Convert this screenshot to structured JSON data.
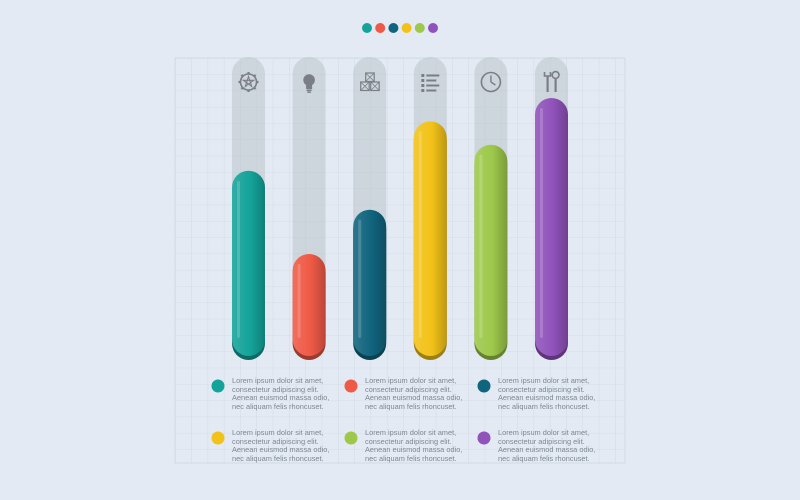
{
  "chart_data": {
    "type": "bar",
    "categories": [
      "gear",
      "lightbulb",
      "boxes",
      "list",
      "clock",
      "tools"
    ],
    "values": [
      72,
      40,
      57,
      91,
      82,
      100
    ],
    "ylim": [
      0,
      120
    ],
    "grid": true,
    "legend_placement": "top-center",
    "colors": [
      "#14a39a",
      "#ef5a46",
      "#11647e",
      "#f2c218",
      "#9dc84a",
      "#9052bb"
    ],
    "icons": [
      "gear-icon",
      "lightbulb-icon",
      "boxes-icon",
      "list-icon",
      "clock-icon",
      "tools-icon"
    ],
    "legend_entries": [
      {
        "color": "#14a39a",
        "text": "Lorem ipsum dolor sit amet,\nconsectetur adipiscing elit.\nAenean euismod massa odio,\nnec aliquam felis rhoncuset."
      },
      {
        "color": "#ef5a46",
        "text": "Lorem ipsum dolor sit amet,\nconsectetur adipiscing elit.\nAenean euismod massa odio,\nnec aliquam felis rhoncuset."
      },
      {
        "color": "#11647e",
        "text": "Lorem ipsum dolor sit amet,\nconsectetur adipiscing elit.\nAenean euismod massa odio,\nnec aliquam felis rhoncuset."
      },
      {
        "color": "#f2c218",
        "text": "Lorem ipsum dolor sit amet,\nconsectetur adipiscing elit.\nAenean euismod massa odio,\nnec aliquam felis rhoncuset."
      },
      {
        "color": "#9dc84a",
        "text": "Lorem ipsum dolor sit amet,\nconsectetur adipiscing elit.\nAenean euismod massa odio,\nnec aliquam felis rhoncuset."
      },
      {
        "color": "#9052bb",
        "text": "Lorem ipsum dolor sit amet,\nconsectetur adipiscing elit.\nAenean euismod massa odio,\nnec aliquam felis rhoncuset."
      }
    ]
  }
}
